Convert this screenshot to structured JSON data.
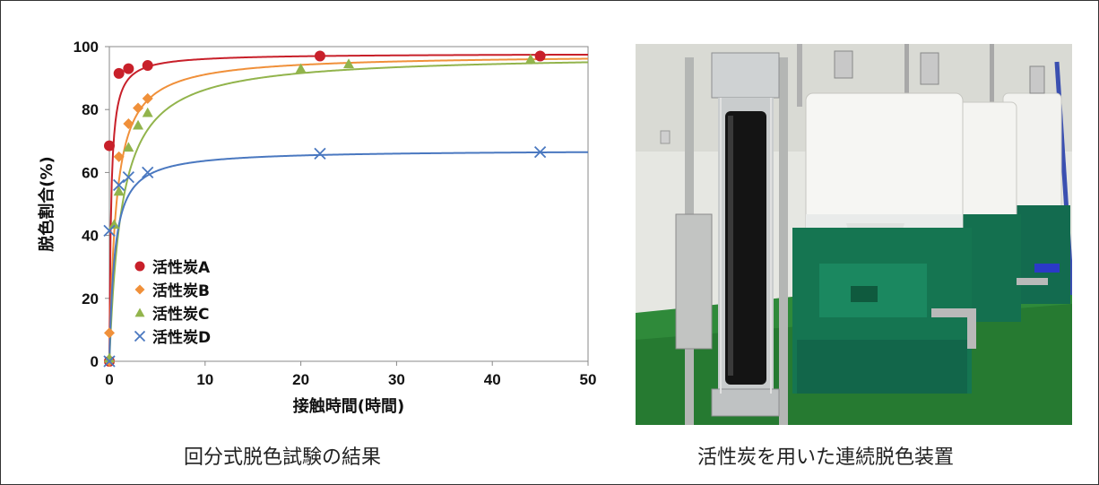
{
  "chart_data": {
    "type": "scatter",
    "xlabel": "接触時間(時間)",
    "ylabel": "脱色割合(%)",
    "xlim": [
      0,
      50
    ],
    "ylim": [
      0,
      100
    ],
    "xticks": [
      0,
      10,
      20,
      30,
      40,
      50
    ],
    "yticks": [
      0,
      20,
      40,
      60,
      80,
      100
    ],
    "legend_position": "bottom-left",
    "series": [
      {
        "name": "活性炭A",
        "color": "#c8202a",
        "marker": "circle",
        "x": [
          0,
          0,
          1,
          2,
          4,
          22,
          45
        ],
        "y": [
          0,
          68.5,
          91.5,
          93,
          94,
          97,
          97
        ],
        "fit": {
          "vmax": 97.8,
          "k": 0.18
        }
      },
      {
        "name": "活性炭B",
        "color": "#f0903a",
        "marker": "diamond",
        "x": [
          0,
          0,
          1,
          2,
          3,
          4
        ],
        "y": [
          0,
          9,
          65,
          75.5,
          80.5,
          83.5
        ],
        "fit": {
          "vmax": 97.5,
          "k": 0.7
        }
      },
      {
        "name": "活性炭C",
        "color": "#92b44c",
        "marker": "triangle",
        "x": [
          0,
          0.5,
          1,
          2,
          3,
          4,
          20,
          25,
          44
        ],
        "y": [
          1,
          43.5,
          54,
          68,
          75,
          79,
          93,
          94.5,
          96
        ],
        "fit": {
          "vmax": 97.5,
          "k": 1.3
        }
      },
      {
        "name": "活性炭D",
        "color": "#4a78c0",
        "marker": "x",
        "x": [
          0,
          0,
          1,
          2,
          4,
          22,
          45
        ],
        "y": [
          0,
          41.5,
          56,
          58.5,
          60,
          66,
          66.5
        ],
        "fit": {
          "vmax": 67.2,
          "k": 0.55
        }
      }
    ]
  },
  "captions": {
    "left": "回分式脱色試験の結果",
    "right": "活性炭を用いた連続脱色装置"
  }
}
